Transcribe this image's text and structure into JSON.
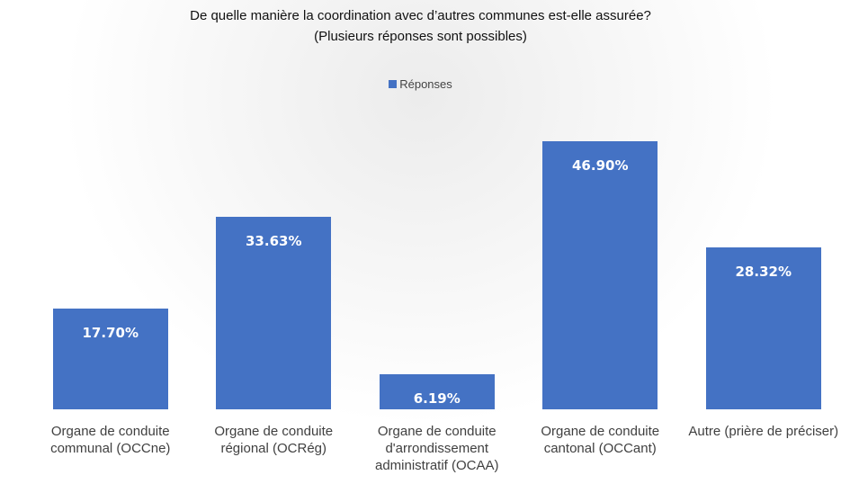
{
  "chart_data": {
    "type": "bar",
    "title": "De quelle manière la coordination avec d’autres communes est-elle assurée?",
    "subtitle": "(Plusieurs réponses sont possibles)",
    "categories": [
      "Organe de conduite communal (OCCne)",
      "Organe de conduite régional (OCRég)",
      "Organe de conduite d'arrondissement administratif (OCAA)",
      "Organe de conduite cantonal (OCCant)",
      "Autre (prière de préciser)"
    ],
    "series": [
      {
        "name": "Réponses",
        "color": "#4472c4",
        "values": [
          17.7,
          33.63,
          6.19,
          46.9,
          28.32
        ],
        "value_labels": [
          "17.70%",
          "33.63%",
          "6.19%",
          "46.90%",
          "28.32%"
        ]
      }
    ]
  }
}
